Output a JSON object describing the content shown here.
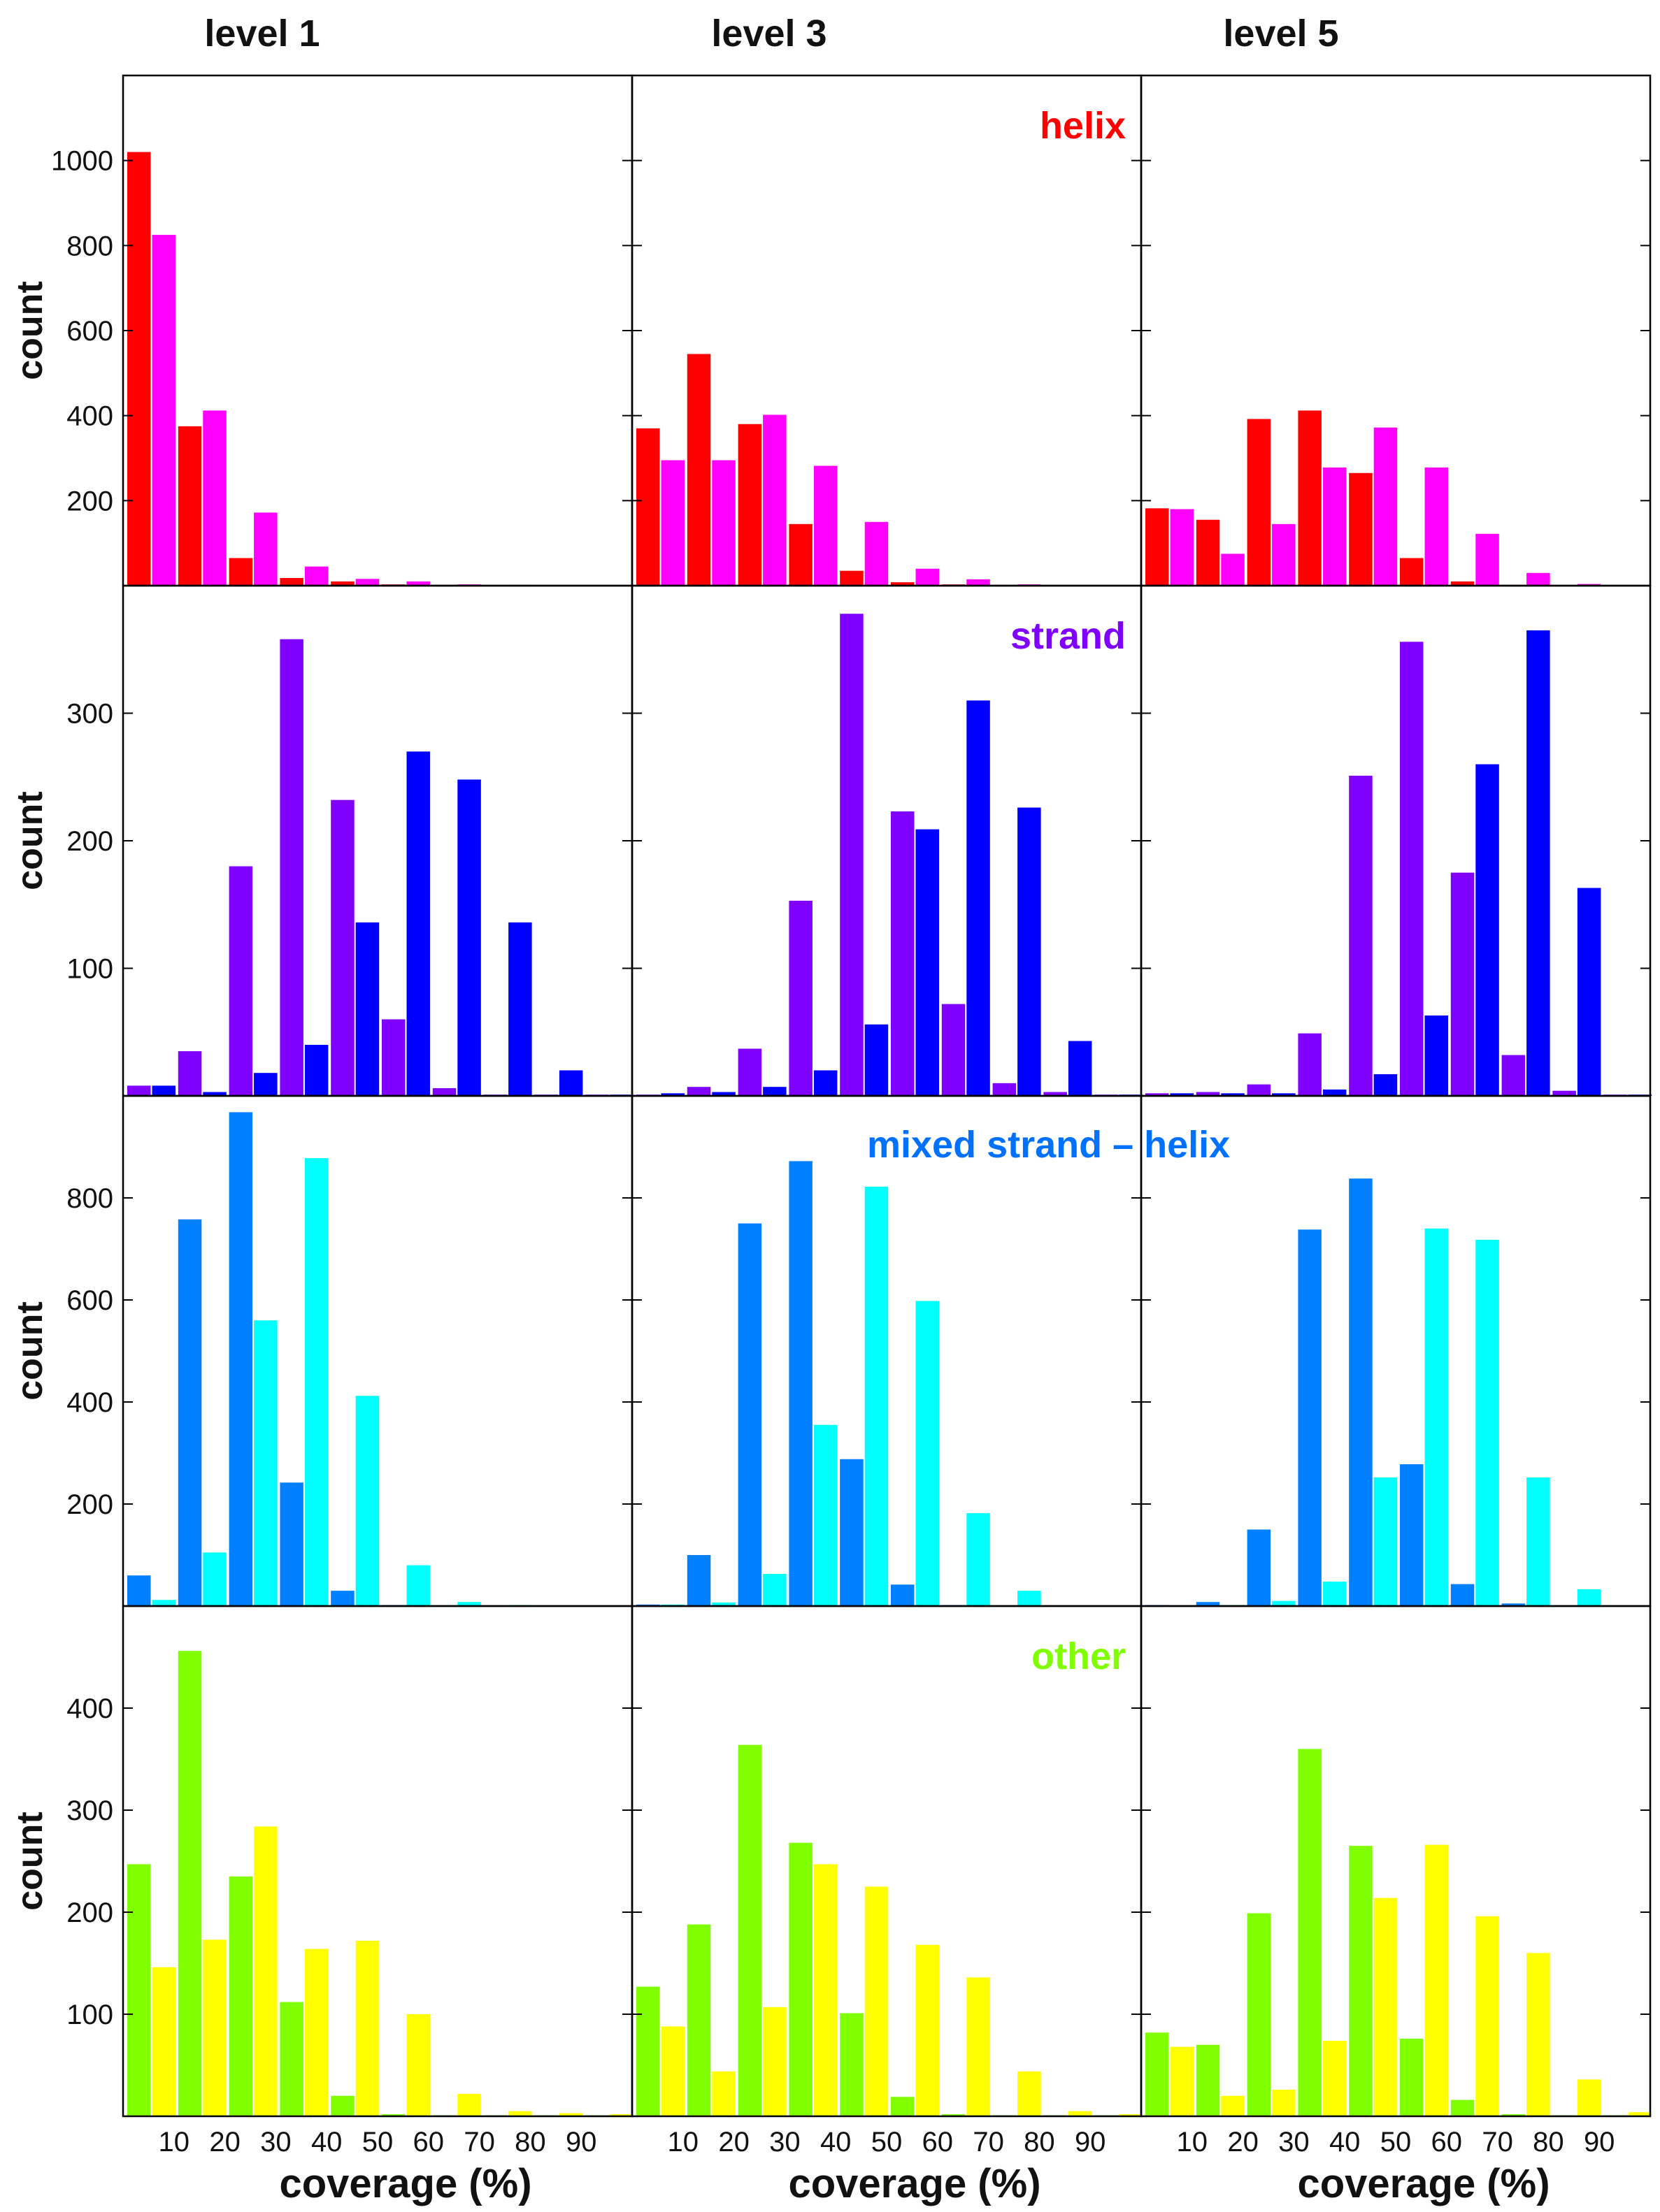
{
  "chart_data": {
    "type": "bar",
    "column_titles": [
      "level 1",
      "level 3",
      "level 5"
    ],
    "xlabel": "coverage (%)",
    "ylabel": "count",
    "x_ticks": [
      "10",
      "20",
      "30",
      "40",
      "50",
      "60",
      "70",
      "80",
      "90"
    ],
    "bins": 10,
    "rows": [
      {
        "label": "helix",
        "label_color": "#ff0000",
        "ylim": [
          0,
          1200
        ],
        "y_ticks": [
          200,
          400,
          600,
          800,
          1000
        ],
        "series_colors": [
          "#ff0000",
          "#ff00ff"
        ],
        "panels": [
          {
            "series": [
              {
                "values": [
                  1020,
                  375,
                  65,
                  18,
                  10,
                  3,
                  2,
                  1,
                  1,
                  1
                ]
              },
              {
                "values": [
                  825,
                  412,
                  172,
                  45,
                  16,
                  10,
                  3,
                  2,
                  1,
                  1
                ]
              }
            ]
          },
          {
            "series": [
              {
                "values": [
                  370,
                  545,
                  380,
                  145,
                  35,
                  8,
                  3,
                  2,
                  1,
                  1
                ]
              },
              {
                "values": [
                  295,
                  295,
                  402,
                  282,
                  150,
                  40,
                  15,
                  3,
                  1,
                  1
                ]
              }
            ]
          },
          {
            "series": [
              {
                "values": [
                  182,
                  155,
                  392,
                  412,
                  265,
                  65,
                  10,
                  2,
                  1,
                  1
                ]
              },
              {
                "values": [
                  180,
                  75,
                  145,
                  278,
                  372,
                  278,
                  122,
                  30,
                  4,
                  1
                ]
              }
            ]
          }
        ]
      },
      {
        "label": "strand",
        "label_color": "#8000ff",
        "ylim": [
          0,
          400
        ],
        "y_ticks": [
          100,
          200,
          300
        ],
        "series_colors": [
          "#8000ff",
          "#0000ff"
        ],
        "panels": [
          {
            "series": [
              {
                "values": [
                  8,
                  35,
                  180,
                  358,
                  232,
                  60,
                  6,
                  1,
                  1,
                  1
                ]
              },
              {
                "values": [
                  8,
                  3,
                  18,
                  40,
                  136,
                  270,
                  248,
                  136,
                  20,
                  1
                ]
              }
            ]
          },
          {
            "series": [
              {
                "values": [
                  1,
                  7,
                  37,
                  153,
                  378,
                  223,
                  72,
                  10,
                  3,
                  1
                ]
              },
              {
                "values": [
                  2,
                  3,
                  7,
                  20,
                  56,
                  209,
                  310,
                  226,
                  43,
                  1
                ]
              }
            ]
          },
          {
            "series": [
              {
                "values": [
                  2,
                  3,
                  9,
                  49,
                  251,
                  356,
                  175,
                  32,
                  4,
                  1
                ]
              },
              {
                "values": [
                  2,
                  2,
                  2,
                  5,
                  17,
                  63,
                  260,
                  365,
                  163,
                  1
                ]
              }
            ]
          }
        ]
      },
      {
        "label": "mixed strand – helix",
        "label_color": "#0070ff",
        "ylim": [
          0,
          1000
        ],
        "y_ticks": [
          200,
          400,
          600,
          800
        ],
        "series_colors": [
          "#0080ff",
          "#00ffff"
        ],
        "panels": [
          {
            "series": [
              {
                "values": [
                  60,
                  758,
                  968,
                  242,
                  30,
                  2,
                  1,
                  1,
                  1,
                  1
                ]
              },
              {
                "values": [
                  12,
                  105,
                  560,
                  878,
                  412,
                  80,
                  8,
                  2,
                  1,
                  1
                ]
              }
            ]
          },
          {
            "series": [
              {
                "values": [
                  3,
                  100,
                  750,
                  872,
                  288,
                  42,
                  2,
                  1,
                  1,
                  1
                ]
              },
              {
                "values": [
                  3,
                  7,
                  63,
                  355,
                  822,
                  598,
                  182,
                  30,
                  1,
                  1
                ]
              }
            ]
          },
          {
            "series": [
              {
                "values": [
                  2,
                  8,
                  150,
                  738,
                  838,
                  278,
                  43,
                  5,
                  1,
                  1
                ]
              },
              {
                "values": [
                  1,
                  2,
                  10,
                  48,
                  252,
                  740,
                  718,
                  252,
                  33,
                  1
                ]
              }
            ]
          }
        ]
      },
      {
        "label": "other",
        "label_color": "#80ff00",
        "ylim": [
          0,
          500
        ],
        "y_ticks": [
          100,
          200,
          300,
          400
        ],
        "series_colors": [
          "#80ff00",
          "#ffff00"
        ],
        "panels": [
          {
            "series": [
              {
                "values": [
                  247,
                  456,
                  235,
                  112,
                  20,
                  2,
                  1,
                  1,
                  1,
                  1
                ]
              },
              {
                "values": [
                  146,
                  173,
                  284,
                  164,
                  172,
                  100,
                  22,
                  5,
                  3,
                  2
                ]
              }
            ]
          },
          {
            "series": [
              {
                "values": [
                  127,
                  188,
                  364,
                  268,
                  101,
                  19,
                  2,
                  1,
                  1,
                  1
                ]
              },
              {
                "values": [
                  88,
                  44,
                  107,
                  247,
                  225,
                  168,
                  136,
                  44,
                  5,
                  2
                ]
              }
            ]
          },
          {
            "series": [
              {
                "values": [
                  82,
                  70,
                  199,
                  360,
                  265,
                  76,
                  16,
                  2,
                  1,
                  1
                ]
              },
              {
                "values": [
                  68,
                  20,
                  26,
                  74,
                  214,
                  266,
                  196,
                  160,
                  36,
                  4
                ]
              }
            ]
          }
        ]
      }
    ]
  }
}
